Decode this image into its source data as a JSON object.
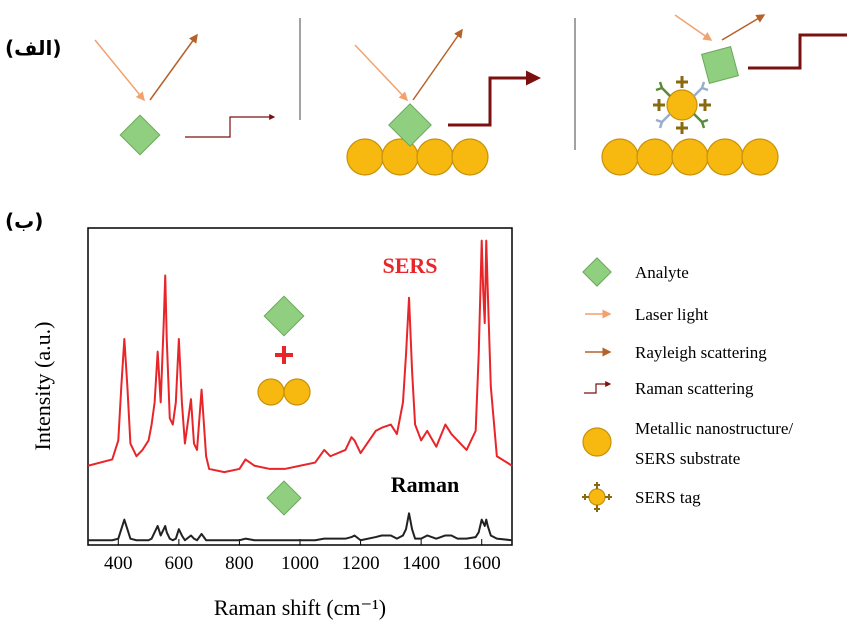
{
  "panels": {
    "a_label": "(الف)",
    "b_label": "(ب)"
  },
  "legend": [
    {
      "label": [
        "Analyte"
      ]
    },
    {
      "label": [
        "Laser light"
      ]
    },
    {
      "label": [
        "Rayleigh scattering"
      ]
    },
    {
      "label": [
        "Raman scattering"
      ]
    },
    {
      "label": [
        "Metallic nanostructure/",
        "SERS substrate"
      ]
    },
    {
      "label": [
        "SERS tag"
      ]
    }
  ],
  "chart_data": {
    "type": "line",
    "xlabel": "Raman shift (cm⁻¹)",
    "ylabel": "Intensity (a.u.)",
    "annotations": [
      "SERS",
      "Raman"
    ],
    "xlim": [
      300,
      1700
    ],
    "xticks": [
      400,
      600,
      800,
      1000,
      1200,
      1400,
      1600
    ],
    "ylim": [
      0,
      100
    ],
    "x": [
      300,
      380,
      400,
      410,
      420,
      430,
      440,
      460,
      480,
      500,
      510,
      520,
      530,
      540,
      550,
      555,
      560,
      570,
      580,
      590,
      600,
      610,
      620,
      640,
      650,
      660,
      675,
      690,
      700,
      750,
      800,
      820,
      850,
      900,
      950,
      1000,
      1050,
      1080,
      1100,
      1150,
      1170,
      1180,
      1200,
      1250,
      1270,
      1300,
      1320,
      1340,
      1350,
      1360,
      1370,
      1380,
      1400,
      1420,
      1450,
      1480,
      1500,
      1520,
      1550,
      1580,
      1590,
      1600,
      1605,
      1610,
      1615,
      1620,
      1630,
      1650,
      1700
    ],
    "series": [
      {
        "name": "SERS",
        "color": "#e8262a",
        "values": [
          25,
          27,
          33,
          50,
          65,
          50,
          32,
          28,
          30,
          33,
          38,
          45,
          61,
          45,
          70,
          85,
          65,
          40,
          38,
          45,
          65,
          45,
          32,
          46,
          32,
          30,
          49,
          28,
          24,
          23,
          24,
          27,
          25,
          24,
          24,
          25,
          26,
          30,
          28,
          30,
          34,
          33,
          29,
          36,
          37,
          38,
          35,
          45,
          60,
          78,
          55,
          38,
          33,
          36,
          31,
          38,
          35,
          33,
          30,
          36,
          60,
          96,
          80,
          70,
          96,
          80,
          50,
          28,
          25
        ]
      },
      {
        "name": "Raman",
        "color": "#222222",
        "values": [
          1.5,
          1.5,
          2,
          5,
          8,
          5,
          2,
          1.5,
          1.5,
          1.5,
          2,
          4,
          6,
          3,
          5,
          6,
          4,
          2,
          1.5,
          2,
          5,
          3,
          1.5,
          3,
          2,
          1.5,
          3.5,
          1.5,
          1.5,
          1.5,
          1.5,
          2,
          1.5,
          1.5,
          1.5,
          1.5,
          1.5,
          2,
          2,
          2,
          2.5,
          3,
          1.5,
          2.5,
          3,
          3,
          2,
          3,
          5,
          10,
          5,
          2,
          2,
          3,
          2,
          3,
          3,
          2,
          2,
          2.5,
          4,
          8,
          7,
          6,
          8,
          6,
          3,
          2,
          1.5
        ]
      }
    ]
  }
}
